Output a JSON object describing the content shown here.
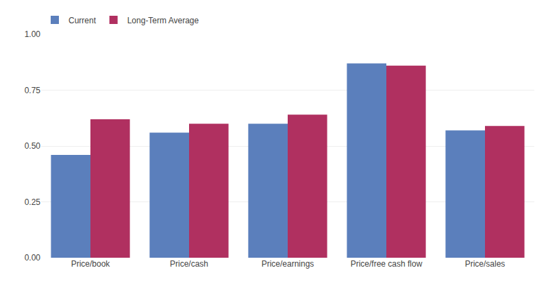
{
  "chart_data": {
    "type": "bar",
    "categories": [
      "Price/book",
      "Price/cash",
      "Price/earnings",
      "Price/free cash flow",
      "Price/sales"
    ],
    "series": [
      {
        "name": "Current",
        "color": "#5b7fbc",
        "values": [
          0.46,
          0.56,
          0.6,
          0.87,
          0.57
        ]
      },
      {
        "name": "Long-Term Average",
        "color": "#b03060",
        "values": [
          0.62,
          0.6,
          0.64,
          0.86,
          0.59
        ]
      }
    ],
    "ylim": [
      0.0,
      1.0
    ],
    "yticks": [
      {
        "value": 0.0,
        "label": "0.00"
      },
      {
        "value": 0.25,
        "label": "0.25"
      },
      {
        "value": 0.5,
        "label": "0.50"
      },
      {
        "value": 0.75,
        "label": "0.75"
      },
      {
        "value": 1.0,
        "label": "1.00"
      }
    ],
    "grid": true,
    "legend": "upper left"
  }
}
